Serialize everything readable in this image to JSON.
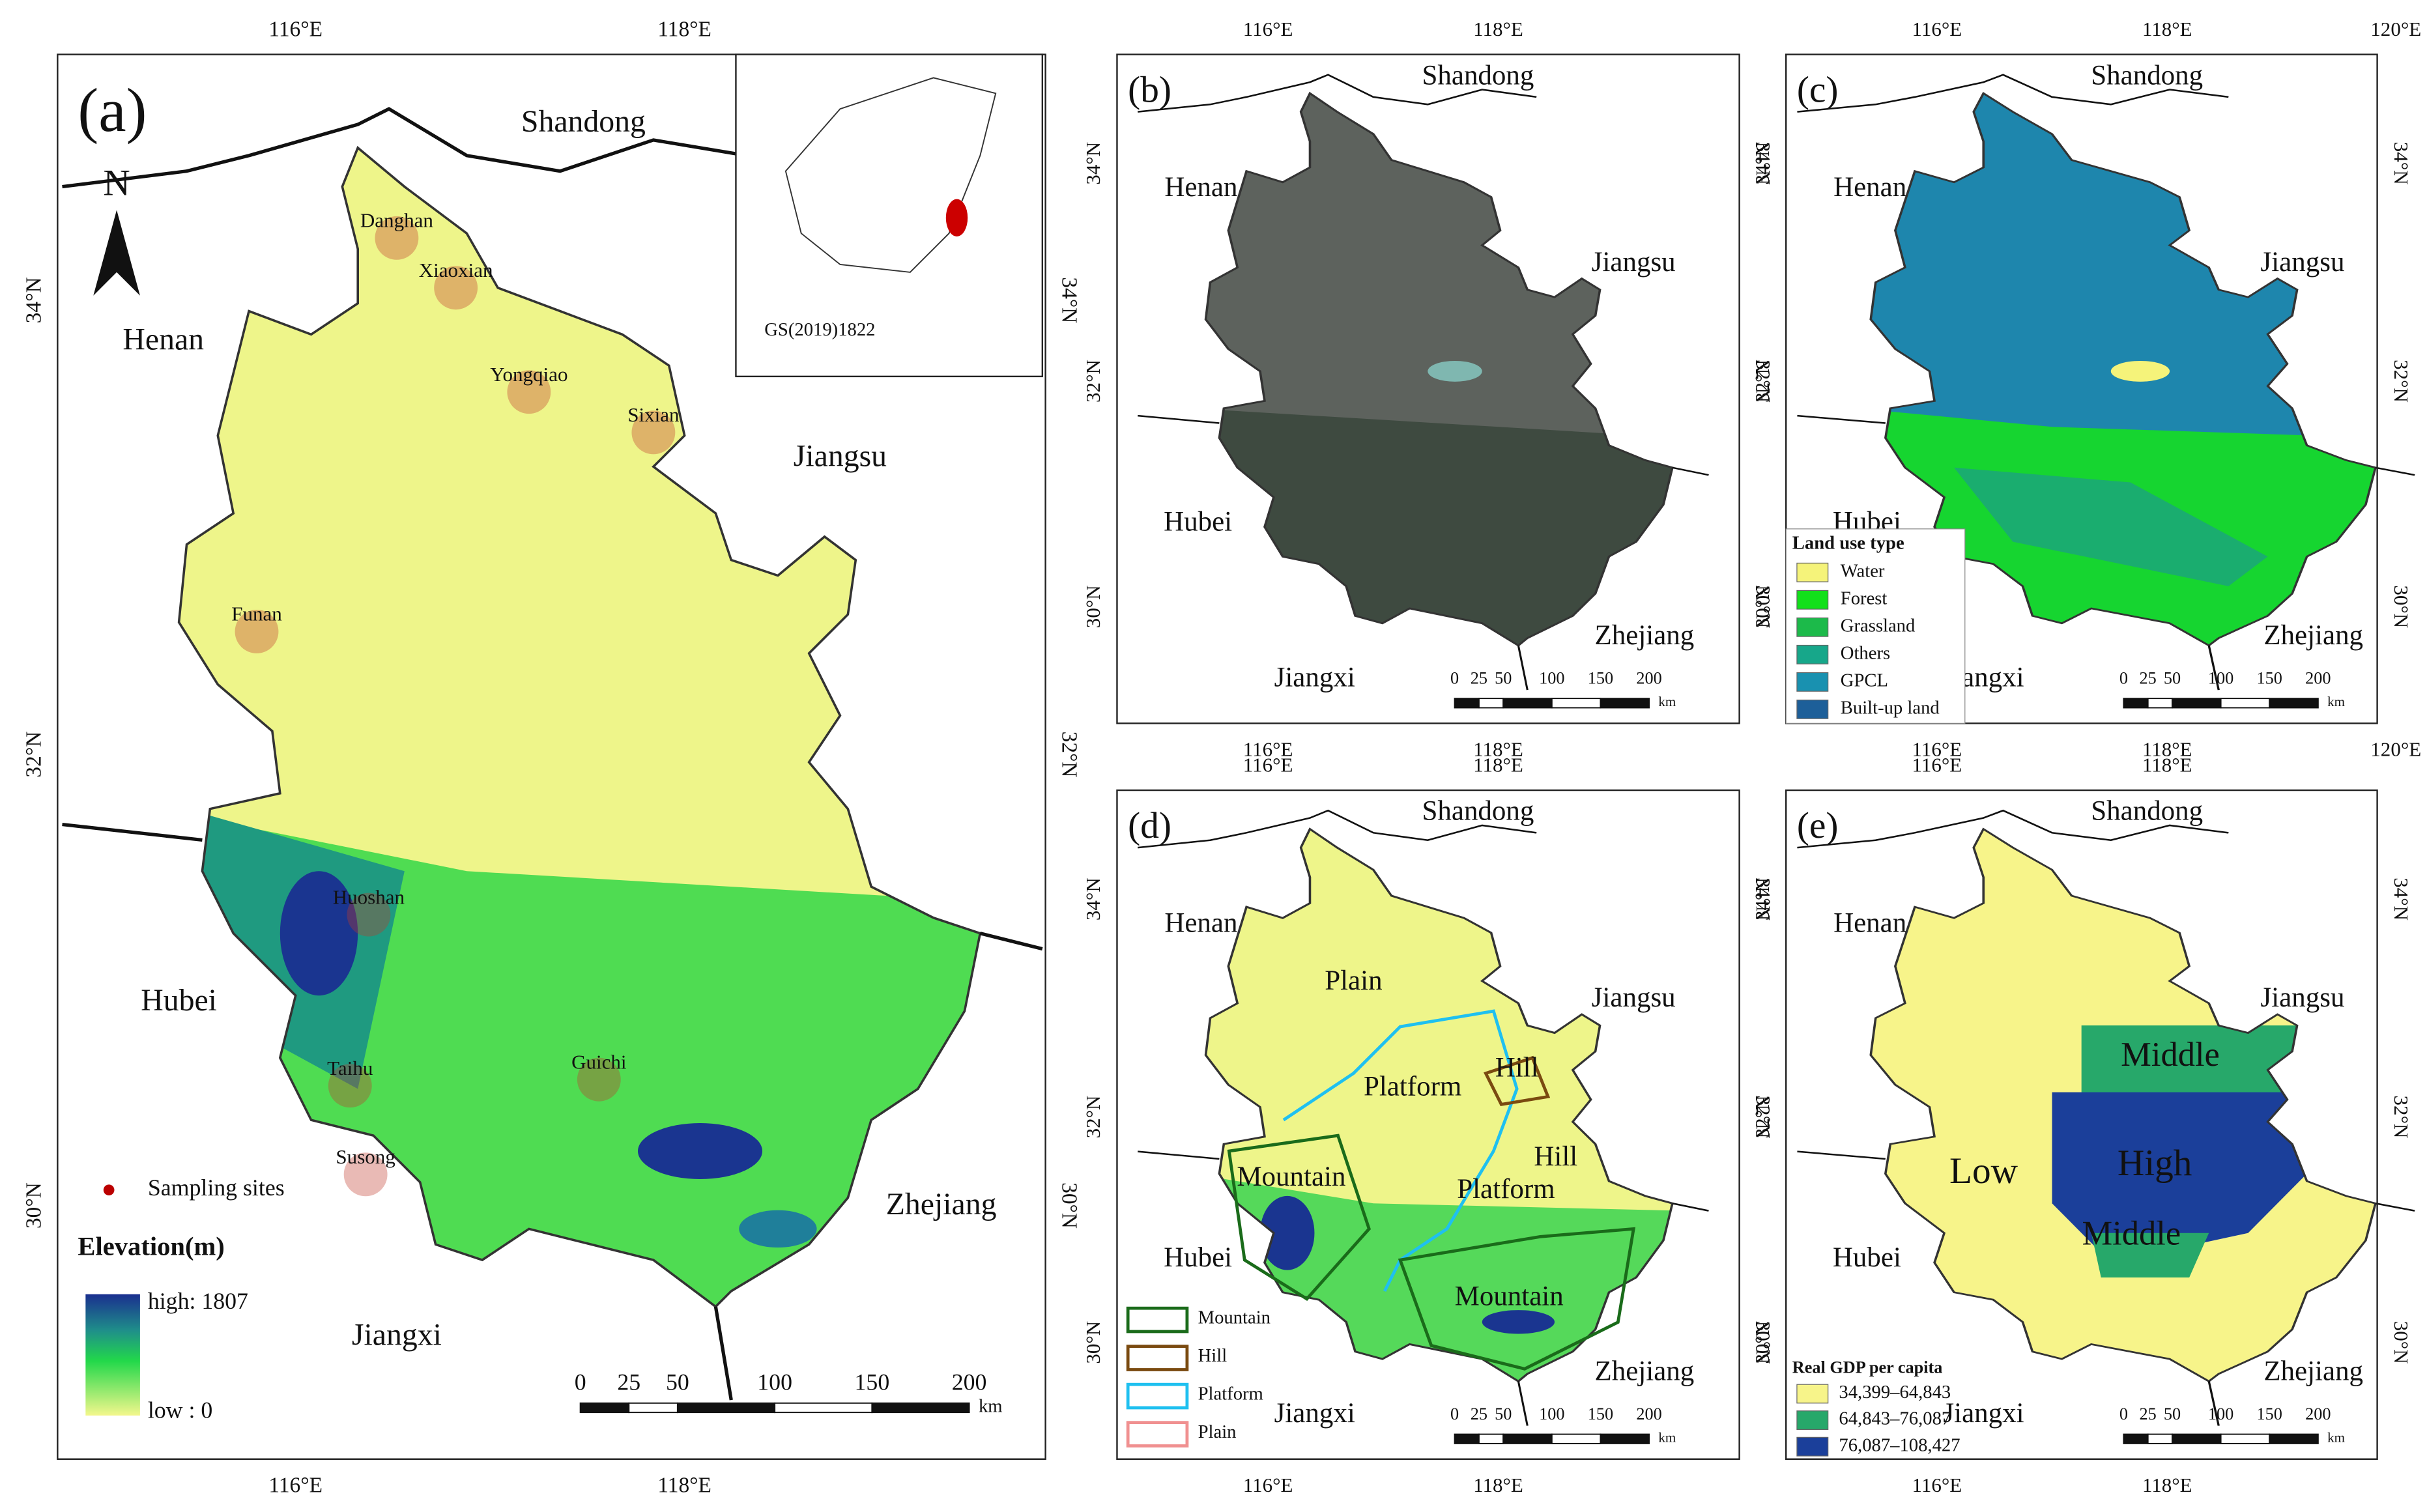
{
  "panel_a": {
    "label": "(a)",
    "north": "N",
    "provinces": [
      "Shandong",
      "Henan",
      "Jiangsu",
      "Hubei",
      "Zhejiang",
      "Jiangxi"
    ],
    "cities": [
      "Danghan",
      "Xiaoxian",
      "Yongqiao",
      "Sixian",
      "Funan",
      "Huoshan",
      "Taihu",
      "Susong",
      "Guichi"
    ],
    "inset_label": "GS(2019)1822",
    "sampling_legend": "Sampling sites",
    "elevation_title": "Elevation(m)",
    "elevation_high": "high: 1807",
    "elevation_low": "low : 0",
    "scale_labels": [
      "0",
      "25",
      "50",
      "100",
      "150",
      "200"
    ],
    "scale_unit": "km",
    "lon_ticks": [
      "116°E",
      "118°E"
    ],
    "lat_ticks": [
      "34°N",
      "32°N",
      "30°N"
    ]
  },
  "panel_b": {
    "label": "(b)",
    "provinces": [
      "Shandong",
      "Henan",
      "Jiangsu",
      "Hubei",
      "Jiangxi",
      "Zhejiang"
    ],
    "scale_labels": [
      "0",
      "25",
      "50",
      "100",
      "150",
      "200"
    ],
    "scale_unit": "km",
    "lon_ticks": [
      "116°E",
      "118°E"
    ],
    "lat_ticks": [
      "34°N",
      "32°N",
      "30°N"
    ]
  },
  "panel_c": {
    "label": "(c)",
    "provinces": [
      "Shandong",
      "Henan",
      "Jiangsu",
      "Hubei",
      "Jiangxi",
      "Zhejiang"
    ],
    "scale_labels": [
      "0",
      "25",
      "50",
      "100",
      "150",
      "200"
    ],
    "scale_unit": "km",
    "lon_ticks": [
      "116°E",
      "118°E",
      "120°E"
    ],
    "lat_ticks": [
      "34°N",
      "32°N",
      "30°N"
    ],
    "legend_title": "Land use type",
    "legend": [
      "Water",
      "Forest",
      "Grassland",
      "Others",
      "GPCL",
      "Built-up land"
    ]
  },
  "panel_d": {
    "label": "(d)",
    "provinces": [
      "Shandong",
      "Henan",
      "Jiangsu",
      "Hubei",
      "Jiangxi",
      "Zhejiang"
    ],
    "scale_labels": [
      "0",
      "25",
      "50",
      "100",
      "150",
      "200"
    ],
    "scale_unit": "km",
    "lon_ticks": [
      "116°E",
      "118°E"
    ],
    "lat_ticks": [
      "34°N",
      "32°N",
      "30°N"
    ],
    "regions": [
      "Plain",
      "Platform",
      "Hill",
      "Hill",
      "Platform",
      "Mountain",
      "Mountain"
    ],
    "legend": [
      "Mountain",
      "Hill",
      "Platform",
      "Plain"
    ]
  },
  "panel_e": {
    "label": "(e)",
    "provinces": [
      "Shandong",
      "Henan",
      "Jiangsu",
      "Hubei",
      "Jiangxi",
      "Zhejiang"
    ],
    "scale_labels": [
      "0",
      "25",
      "50",
      "100",
      "150",
      "200"
    ],
    "scale_unit": "km",
    "lon_ticks": [
      "116°E",
      "118°E"
    ],
    "lat_ticks": [
      "34°N",
      "32°N",
      "30°N"
    ],
    "regions": [
      "Low",
      "Middle",
      "High",
      "Middle"
    ],
    "legend_title": "Real GDP per capita",
    "legend": [
      "34,399–64,843",
      "64,843–76,087",
      "76,087–108,427"
    ]
  }
}
